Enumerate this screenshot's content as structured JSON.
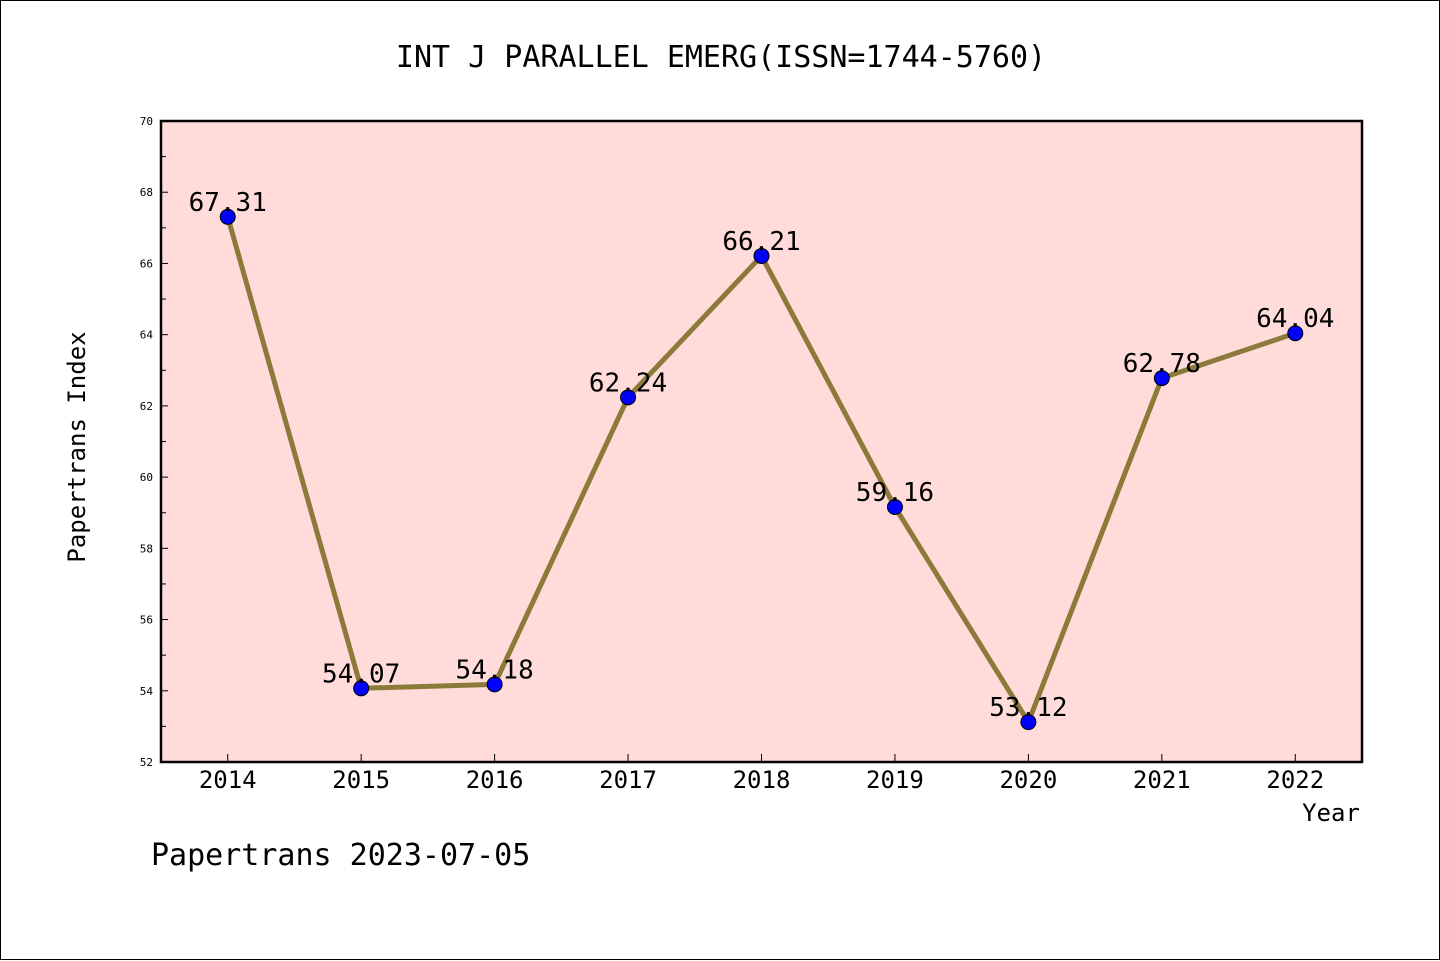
{
  "chart_data": {
    "type": "line",
    "title": "INT J PARALLEL EMERG(ISSN=1744-5760)",
    "xlabel": "Year",
    "ylabel": "Papertrans Index",
    "categories": [
      "2014",
      "2015",
      "2016",
      "2017",
      "2018",
      "2019",
      "2020",
      "2021",
      "2022"
    ],
    "values": [
      67.31,
      54.07,
      54.18,
      62.24,
      66.21,
      59.16,
      53.12,
      62.78,
      64.04
    ],
    "value_labels": [
      "67.31",
      "54.07",
      "54.18",
      "62.24",
      "66.21",
      "59.16",
      "53.12",
      "62.78",
      "64.04"
    ],
    "ylim": [
      52,
      70
    ],
    "yticks": [
      "52",
      "54",
      "56",
      "58",
      "60",
      "62",
      "64",
      "66",
      "68",
      "70"
    ],
    "grid": false,
    "colors": {
      "plot_background": "#ffdcd9",
      "line": "#8b7a3a",
      "marker": "#0000ff"
    }
  },
  "footer": "Papertrans 2023-07-05"
}
